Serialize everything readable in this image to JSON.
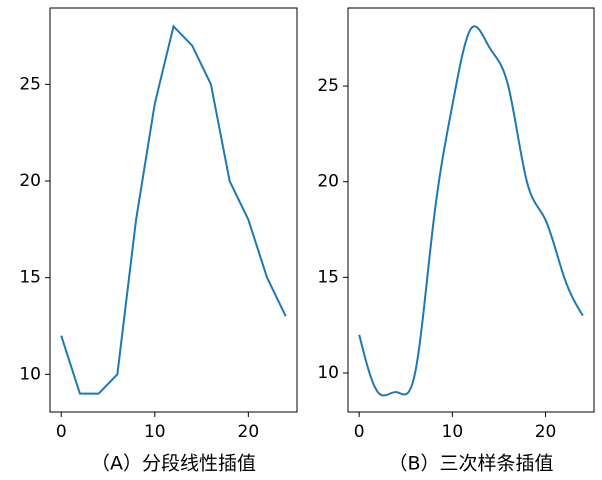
{
  "chart_data": [
    {
      "type": "line",
      "smooth": false,
      "xlabel": "（A）分段线性插值",
      "x": [
        0,
        2,
        4,
        6,
        8,
        10,
        12,
        14,
        16,
        18,
        20,
        22,
        24
      ],
      "series": [
        {
          "color": "#1f77b4",
          "values": [
            12,
            9,
            9,
            10,
            18,
            24,
            28,
            27,
            25,
            20,
            18,
            15,
            13
          ]
        }
      ],
      "xlim": [
        -1.2,
        25.2
      ],
      "ylim": [
        8.05,
        28.95
      ],
      "xticks": [
        0,
        10,
        20
      ],
      "yticks": [
        10,
        15,
        20,
        25
      ]
    },
    {
      "type": "line",
      "smooth": true,
      "xlabel": "（B）三次样条插值",
      "x": [
        0,
        2,
        4,
        6,
        8,
        10,
        12,
        14,
        16,
        18,
        20,
        22,
        24
      ],
      "series": [
        {
          "color": "#1f77b4",
          "values": [
            12,
            9,
            9,
            10,
            18,
            24,
            28,
            27,
            25,
            20,
            18,
            15,
            13
          ]
        }
      ],
      "xlim": [
        -1.2,
        25.2
      ],
      "ylim": [
        7.96,
        29.08
      ],
      "xticks": [
        0,
        10,
        20
      ],
      "yticks": [
        10,
        15,
        20,
        25
      ]
    }
  ]
}
